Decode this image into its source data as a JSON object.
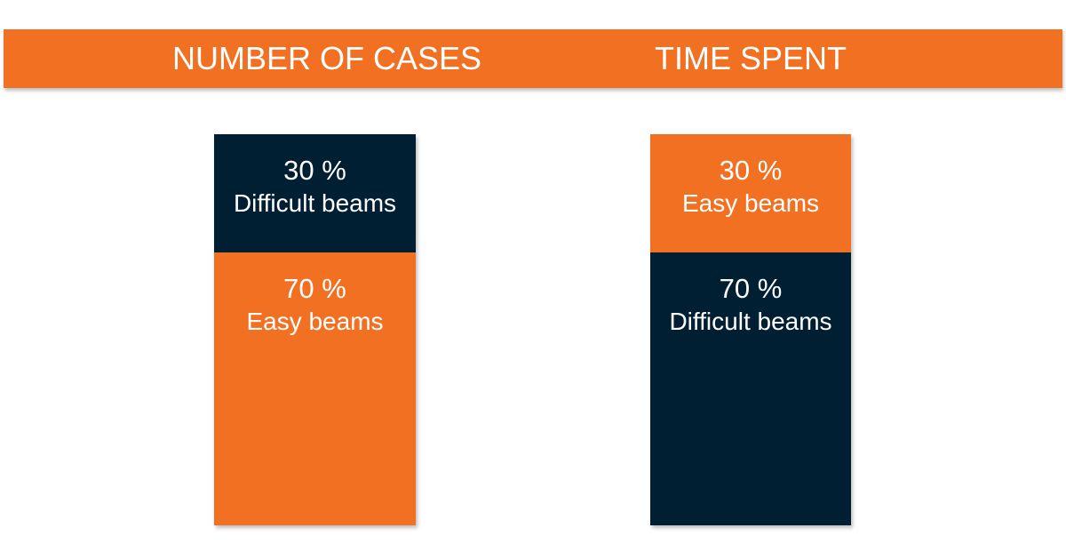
{
  "colors": {
    "orange": "#F27022",
    "navy": "#001F33"
  },
  "chart_data": [
    {
      "type": "bar",
      "title": "NUMBER OF CASES",
      "stacked": true,
      "segments": [
        {
          "value": 30,
          "value_label": "30 %",
          "label": "Difficult beams",
          "color": "#001F33"
        },
        {
          "value": 70,
          "value_label": "70 %",
          "label": "Easy beams",
          "color": "#F27022"
        }
      ]
    },
    {
      "type": "bar",
      "title": "TIME SPENT",
      "stacked": true,
      "segments": [
        {
          "value": 30,
          "value_label": "30 %",
          "label": "Easy beams",
          "color": "#F27022"
        },
        {
          "value": 70,
          "value_label": "70 %",
          "label": "Difficult beams",
          "color": "#001F33"
        }
      ]
    }
  ]
}
